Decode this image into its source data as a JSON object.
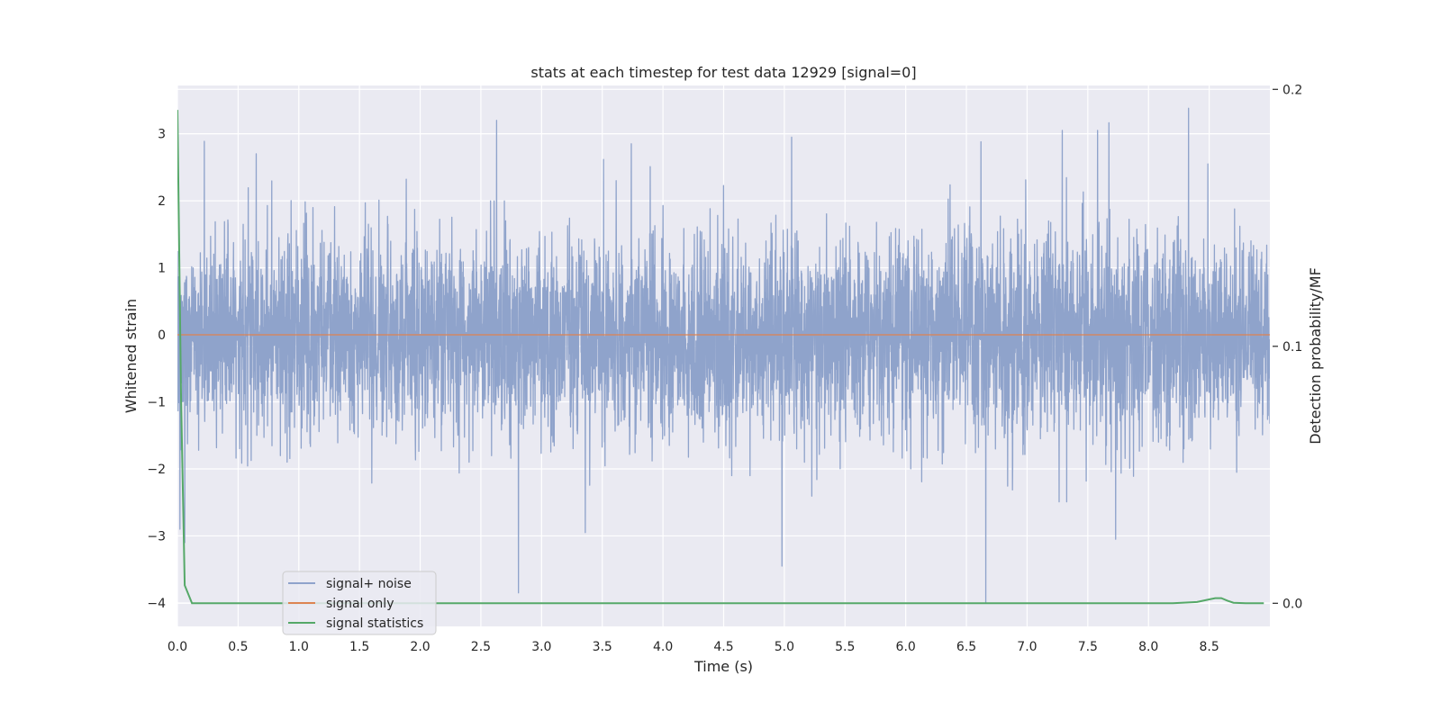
{
  "chart_data": {
    "type": "line",
    "title": "stats at each timestep for test data 12929 [signal=0]",
    "xlabel": "Time (s)",
    "ylabel": "Whitened strain",
    "y2label": "Detection probability/MF",
    "xlim": [
      0,
      9.0
    ],
    "ylim": [
      -4.35,
      3.72
    ],
    "y2lim": [
      -0.009,
      0.2015
    ],
    "xticks": [
      "0.0",
      "0.5",
      "1.0",
      "1.5",
      "2.0",
      "2.5",
      "3.0",
      "3.5",
      "4.0",
      "4.5",
      "5.0",
      "5.5",
      "6.0",
      "6.5",
      "7.0",
      "7.5",
      "8.0",
      "8.5"
    ],
    "yticks": [
      "−4",
      "−3",
      "−2",
      "−1",
      "0",
      "1",
      "2",
      "3"
    ],
    "y2ticks": [
      "0.0",
      "0.1",
      "0.2"
    ],
    "grid": true,
    "legend_position": "lower-left",
    "colors": {
      "noise": "#8fa3cb",
      "signal": "#dd8452",
      "stats": "#55a868",
      "background": "#eaeaf2"
    },
    "series": [
      {
        "name": "signal+ noise",
        "kind": "noise",
        "envelope": {
          "std": 0.75,
          "min": -4.0,
          "max": 3.38
        },
        "spikes": [
          {
            "x": 2.63,
            "y": 3.2
          },
          {
            "x": 2.81,
            "y": -3.85
          },
          {
            "x": 3.36,
            "y": -2.95
          },
          {
            "x": 4.98,
            "y": -3.45
          },
          {
            "x": 5.06,
            "y": 2.95
          },
          {
            "x": 6.66,
            "y": -4.0
          },
          {
            "x": 6.62,
            "y": 2.88
          },
          {
            "x": 7.29,
            "y": 3.05
          },
          {
            "x": 7.58,
            "y": 3.05
          },
          {
            "x": 7.73,
            "y": -3.05
          },
          {
            "x": 8.33,
            "y": 3.38
          },
          {
            "x": 8.49,
            "y": 2.55
          },
          {
            "x": 3.74,
            "y": 2.85
          },
          {
            "x": 0.65,
            "y": 2.7
          },
          {
            "x": 0.06,
            "y": -3.1
          },
          {
            "x": 0.02,
            "y": -2.9
          }
        ]
      },
      {
        "name": "signal only",
        "kind": "signal",
        "x": [
          0,
          9.0
        ],
        "y": [
          0,
          0
        ]
      },
      {
        "name": "signal statistics",
        "kind": "stats",
        "axis": "right",
        "x": [
          0.0,
          0.03,
          0.06,
          0.12,
          0.5,
          1.0,
          2.0,
          3.0,
          4.0,
          5.0,
          6.0,
          7.0,
          8.0,
          8.2,
          8.4,
          8.5,
          8.55,
          8.6,
          8.65,
          8.7,
          8.8,
          8.95
        ],
        "y": [
          0.192,
          0.08,
          0.007,
          0.0,
          0.0,
          0.0,
          0.0,
          0.0,
          0.0,
          0.0,
          0.0,
          0.0,
          0.0,
          0.0,
          0.0005,
          0.0015,
          0.002,
          0.002,
          0.001,
          0.0002,
          0.0,
          0.0
        ]
      }
    ]
  }
}
